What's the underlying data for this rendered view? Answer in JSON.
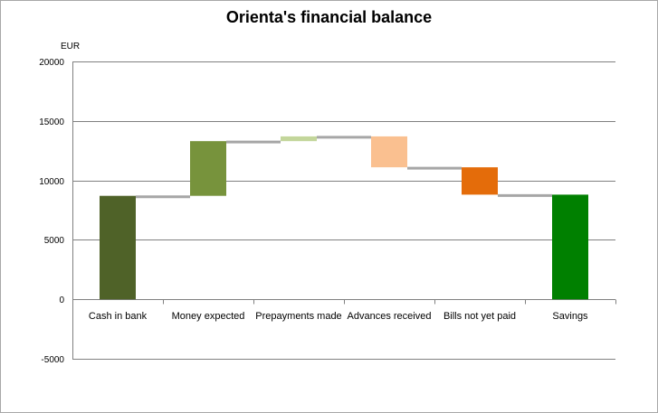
{
  "chart_data": {
    "type": "bar",
    "variant": "waterfall",
    "title": "Orienta's financial balance",
    "ylabel": "EUR",
    "xlabel": "",
    "ylim": [
      -5000,
      20000
    ],
    "yticks": [
      {
        "value": 20000,
        "label": "20000"
      },
      {
        "value": 15000,
        "label": "15000"
      },
      {
        "value": 10000,
        "label": "10000"
      },
      {
        "value": 5000,
        "label": "5000"
      },
      {
        "value": 0,
        "label": "0"
      },
      {
        "value": -5000,
        "label": "-5000"
      }
    ],
    "grid": true,
    "categories": [
      "Cash in bank",
      "Money expected",
      "Prepayments made",
      "Advances received",
      "Bills not yet paid",
      "Savings"
    ],
    "bars": [
      {
        "category": "Cash in bank",
        "start": 0,
        "end": 8700,
        "color": "#4f6228"
      },
      {
        "category": "Money expected",
        "start": 8700,
        "end": 13300,
        "color": "#77933c"
      },
      {
        "category": "Prepayments made",
        "start": 13300,
        "end": 13700,
        "color": "#c3d69b"
      },
      {
        "category": "Advances received",
        "start": 13700,
        "end": 11100,
        "color": "#fac090"
      },
      {
        "category": "Bills not yet paid",
        "start": 11100,
        "end": 8800,
        "color": "#e46c0a"
      },
      {
        "category": "Savings",
        "start": 0,
        "end": 8800,
        "color": "#008000"
      }
    ],
    "connector_color": "#a6a6a6"
  }
}
